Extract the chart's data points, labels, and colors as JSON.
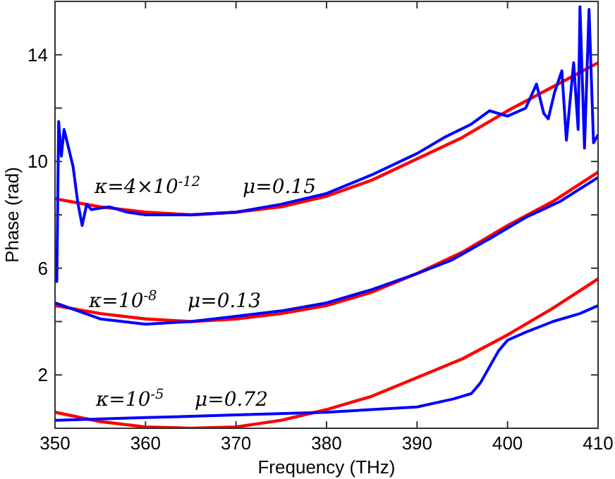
{
  "chart_data": {
    "type": "line",
    "xlabel": "Frequency (THz)",
    "ylabel": "Phase (rad)",
    "xlim": [
      350,
      410
    ],
    "xticks": [
      350,
      360,
      370,
      380,
      390,
      400,
      410
    ],
    "ylim": [
      0,
      16
    ],
    "yticks": [
      2,
      {
        "value": 4,
        "label": null
      },
      6,
      {
        "value": 8,
        "label": null
      },
      10,
      {
        "value": 12,
        "label": null
      },
      14
    ],
    "grid": false,
    "line_style": "solid",
    "marker": "none",
    "series": [
      {
        "color": "#ff0000",
        "x": [
          350,
          355,
          360,
          365,
          370,
          375,
          380,
          385,
          390,
          395,
          400,
          405,
          410
        ],
        "values": [
          8.6,
          8.3,
          8.1,
          8.0,
          8.1,
          8.3,
          8.7,
          9.3,
          10.1,
          10.9,
          11.9,
          12.8,
          13.7
        ]
      },
      {
        "color": "#0000ff",
        "x": [
          350,
          350.2,
          350.4,
          350.7,
          351,
          351.5,
          352,
          352.5,
          353,
          353.5,
          354,
          356,
          358,
          360,
          365,
          370,
          375,
          380,
          385,
          390,
          393,
          396,
          398,
          400,
          402,
          403.2,
          404,
          404.5,
          405.2,
          406,
          406.5,
          407.3,
          407.8,
          408,
          408.5,
          409,
          409.5,
          410
        ],
        "values": [
          6.0,
          5.5,
          11.5,
          10.2,
          11.2,
          10.5,
          9.8,
          8.5,
          7.6,
          8.4,
          8.2,
          8.3,
          8.1,
          8.0,
          8.0,
          8.1,
          8.4,
          8.8,
          9.5,
          10.3,
          10.9,
          11.4,
          11.9,
          11.7,
          12.0,
          12.9,
          11.8,
          11.6,
          12.6,
          13.4,
          10.8,
          13.7,
          11.2,
          15.8,
          10.5,
          15.7,
          10.7,
          11.0
        ]
      },
      {
        "color": "#ff0000",
        "x": [
          350,
          355,
          360,
          365,
          370,
          375,
          380,
          385,
          390,
          395,
          400,
          405,
          410
        ],
        "values": [
          4.6,
          4.3,
          4.1,
          4.0,
          4.1,
          4.3,
          4.6,
          5.1,
          5.8,
          6.6,
          7.6,
          8.5,
          9.6
        ]
      },
      {
        "color": "#0000ff",
        "x": [
          350,
          355,
          360,
          365,
          370,
          375,
          380,
          385,
          390,
          393.8,
          398,
          402,
          405.8,
          410
        ],
        "values": [
          4.7,
          4.1,
          3.9,
          4.0,
          4.2,
          4.4,
          4.7,
          5.2,
          5.8,
          6.3,
          7.1,
          7.9,
          8.5,
          9.4
        ]
      },
      {
        "color": "#ff0000",
        "x": [
          350,
          355,
          360,
          365,
          370,
          375,
          380,
          385,
          390,
          395,
          400,
          405,
          410
        ],
        "values": [
          0.6,
          0.25,
          0.05,
          0.0,
          0.05,
          0.3,
          0.7,
          1.2,
          1.9,
          2.6,
          3.5,
          4.5,
          5.6
        ]
      },
      {
        "color": "#0000ff",
        "x": [
          350,
          360,
          370,
          380,
          390,
          394,
          396,
          397,
          398,
          399,
          400,
          402,
          405,
          408,
          410
        ],
        "values": [
          0.3,
          0.4,
          0.5,
          0.6,
          0.8,
          1.1,
          1.3,
          1.7,
          2.3,
          2.9,
          3.3,
          3.6,
          4.0,
          4.3,
          4.6
        ]
      }
    ],
    "annotations": [
      "κ=4×10$^{-12}$",
      "μ=0.15",
      "κ=10$^{-8}$",
      "μ=0.13",
      "κ=10$^{-5}$",
      "μ=0.72"
    ]
  }
}
